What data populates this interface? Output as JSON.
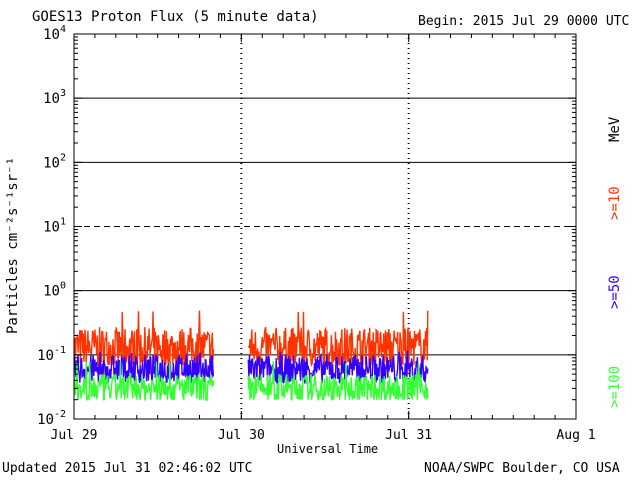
{
  "header": {
    "title": "GOES13 Proton Flux (5 minute data)",
    "begin": "Begin: 2015 Jul 29 0000 UTC"
  },
  "footer": {
    "updated": "Updated 2015 Jul 31 02:46:02 UTC",
    "credit": "NOAA/SWPC Boulder, CO USA"
  },
  "colors": {
    "ge10": "#ff3300",
    "ge50": "#3300ff",
    "ge100": "#33ff33",
    "axis": "#000000"
  },
  "chart_data": {
    "type": "line",
    "title": "GOES13 Proton Flux (5 minute data)",
    "xlabel": "Universal Time",
    "ylabel": "Particles cm⁻²s⁻¹sr⁻¹",
    "yscale": "log",
    "ylim": [
      0.01,
      10000
    ],
    "xlim": [
      "2015-07-29 00:00",
      "2015-08-01 00:00"
    ],
    "x_ticks": [
      "Jul 29",
      "Jul 30",
      "Jul 31",
      "Aug 1"
    ],
    "y_ticks": [
      {
        "base": "10",
        "exp": "-2"
      },
      {
        "base": "10",
        "exp": "-1"
      },
      {
        "base": "10",
        "exp": "0"
      },
      {
        "base": "10",
        "exp": "1"
      },
      {
        "base": "10",
        "exp": "2"
      },
      {
        "base": "10",
        "exp": "3"
      },
      {
        "base": "10",
        "exp": "4"
      }
    ],
    "threshold_line": 10,
    "legend_units": "MeV",
    "data_gaps": [
      {
        "start": "2015-07-29 20:00",
        "end": "2015-07-30 01:00"
      }
    ],
    "series": [
      {
        "name": ">=10",
        "color": "#ff3300",
        "typical": 0.13,
        "min": 0.07,
        "max": 0.5,
        "start": "2015-07-29 00:00",
        "end": "2015-07-31 02:45"
      },
      {
        "name": ">=50",
        "color": "#3300ff",
        "typical": 0.06,
        "min": 0.03,
        "max": 0.12,
        "start": "2015-07-29 00:00",
        "end": "2015-07-31 02:45"
      },
      {
        "name": ">=100",
        "color": "#33ff33",
        "typical": 0.03,
        "min": 0.02,
        "max": 0.08,
        "start": "2015-07-29 00:00",
        "end": "2015-07-31 02:45"
      }
    ]
  }
}
